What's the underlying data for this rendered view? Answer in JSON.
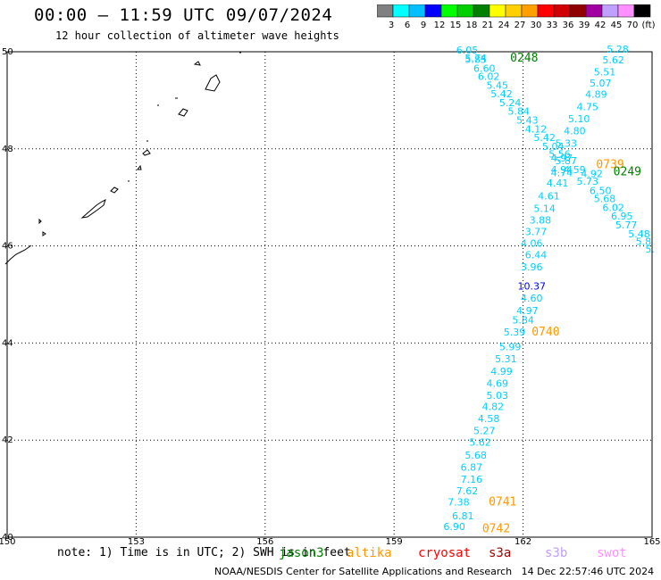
{
  "title": "00:00 — 11:59 UTC 09/07/2024",
  "subtitle": "12 hour collection of altimeter wave heights",
  "colorbar": {
    "colors": [
      "#808080",
      "#00ffff",
      "#00c0ff",
      "#0000ff",
      "#00ff00",
      "#00d000",
      "#008000",
      "#ffff00",
      "#ffd000",
      "#ffa000",
      "#ff0000",
      "#d00000",
      "#900000",
      "#a000a0",
      "#c0a0ff",
      "#ff90ff",
      "#000000"
    ],
    "labels": [
      "3",
      "6",
      "9",
      "12",
      "15",
      "18",
      "21",
      "24",
      "27",
      "30",
      "33",
      "36",
      "39",
      "42",
      "45",
      "70",
      "(ft)"
    ]
  },
  "axes": {
    "x_labels": [
      "150",
      "153",
      "156",
      "159",
      "162",
      "165"
    ],
    "y_labels": [
      "50",
      "48",
      "46",
      "44",
      "42",
      "40"
    ]
  },
  "pass_labels": [
    {
      "text": "0248",
      "color": "#008000",
      "lon": 161.7,
      "lat": 49.8
    },
    {
      "text": "0739",
      "color": "#ff9900",
      "lon": 163.7,
      "lat": 47.6
    },
    {
      "text": "0249",
      "color": "#008000",
      "lon": 164.1,
      "lat": 47.45
    },
    {
      "text": "0740",
      "color": "#ff9900",
      "lon": 162.2,
      "lat": 44.15
    },
    {
      "text": "0741",
      "color": "#ff9900",
      "lon": 161.2,
      "lat": 40.65
    },
    {
      "text": "0742",
      "color": "#ff9900",
      "lon": 161.05,
      "lat": 40.1
    }
  ],
  "observations": [
    {
      "v": "6.05",
      "lon": 160.7,
      "lat": 49.96,
      "c": "#00d0ff"
    },
    {
      "v": "5.74",
      "lon": 160.9,
      "lat": 49.8,
      "c": "#00d0ff"
    },
    {
      "v": "5.85",
      "lon": 160.9,
      "lat": 49.77,
      "c": "#00d0ff"
    },
    {
      "v": "6.60",
      "lon": 161.1,
      "lat": 49.59,
      "c": "#00d0ff"
    },
    {
      "v": "6.02",
      "lon": 161.2,
      "lat": 49.42,
      "c": "#00d0ff"
    },
    {
      "v": "5.45",
      "lon": 161.4,
      "lat": 49.24,
      "c": "#00d0ff"
    },
    {
      "v": "5.42",
      "lon": 161.5,
      "lat": 49.06,
      "c": "#00d0ff"
    },
    {
      "v": "5.24",
      "lon": 161.7,
      "lat": 48.88,
      "c": "#00d0ff"
    },
    {
      "v": "5.84",
      "lon": 161.9,
      "lat": 48.7,
      "c": "#00d0ff"
    },
    {
      "v": "5.43",
      "lon": 162.1,
      "lat": 48.52,
      "c": "#00d0ff"
    },
    {
      "v": "4.12",
      "lon": 162.3,
      "lat": 48.34,
      "c": "#00d0ff"
    },
    {
      "v": "5.42",
      "lon": 162.5,
      "lat": 48.16,
      "c": "#00d0ff"
    },
    {
      "v": "5.04",
      "lon": 162.7,
      "lat": 47.98,
      "c": "#00d0ff"
    },
    {
      "v": "5.56",
      "lon": 162.85,
      "lat": 47.82,
      "c": "#00d0ff"
    },
    {
      "v": "5.87",
      "lon": 163.0,
      "lat": 47.68,
      "c": "#00d0ff"
    },
    {
      "v": "4.59",
      "lon": 163.2,
      "lat": 47.5,
      "c": "#00d0ff"
    },
    {
      "v": "4.92",
      "lon": 163.6,
      "lat": 47.42,
      "c": "#00d0ff"
    },
    {
      "v": "5.73",
      "lon": 163.5,
      "lat": 47.26,
      "c": "#00d0ff"
    },
    {
      "v": "6.50",
      "lon": 163.8,
      "lat": 47.07,
      "c": "#00d0ff"
    },
    {
      "v": "5.68",
      "lon": 163.9,
      "lat": 46.9,
      "c": "#00d0ff"
    },
    {
      "v": "6.02",
      "lon": 164.1,
      "lat": 46.72,
      "c": "#00d0ff"
    },
    {
      "v": "6.95",
      "lon": 164.3,
      "lat": 46.54,
      "c": "#00d0ff"
    },
    {
      "v": "5.77",
      "lon": 164.4,
      "lat": 46.36,
      "c": "#00d0ff"
    },
    {
      "v": "5.48",
      "lon": 164.7,
      "lat": 46.18,
      "c": "#00d0ff"
    },
    {
      "v": "5.8",
      "lon": 164.8,
      "lat": 46.02,
      "c": "#00d0ff"
    },
    {
      "v": "5.",
      "lon": 164.95,
      "lat": 45.86,
      "c": "#00d0ff"
    },
    {
      "v": "5.28",
      "lon": 164.2,
      "lat": 49.98,
      "c": "#00d0ff"
    },
    {
      "v": "5.62",
      "lon": 164.1,
      "lat": 49.76,
      "c": "#00d0ff"
    },
    {
      "v": "5.51",
      "lon": 163.9,
      "lat": 49.51,
      "c": "#00d0ff"
    },
    {
      "v": "5.07",
      "lon": 163.8,
      "lat": 49.28,
      "c": "#00d0ff"
    },
    {
      "v": "4.89",
      "lon": 163.7,
      "lat": 49.05,
      "c": "#00d0ff"
    },
    {
      "v": "4.75",
      "lon": 163.5,
      "lat": 48.8,
      "c": "#00d0ff"
    },
    {
      "v": "5.10",
      "lon": 163.3,
      "lat": 48.55,
      "c": "#00d0ff"
    },
    {
      "v": "4.80",
      "lon": 163.2,
      "lat": 48.3,
      "c": "#00d0ff"
    },
    {
      "v": "5.33",
      "lon": 163.0,
      "lat": 48.04,
      "c": "#00d0ff"
    },
    {
      "v": "4.97",
      "lon": 162.9,
      "lat": 47.74,
      "c": "#00d0ff"
    },
    {
      "v": "4.94",
      "lon": 162.9,
      "lat": 47.5,
      "c": "#00d0ff"
    },
    {
      "v": "4.74",
      "lon": 162.9,
      "lat": 47.44,
      "c": "#00d0ff"
    },
    {
      "v": "4.41",
      "lon": 162.8,
      "lat": 47.22,
      "c": "#00d0ff"
    },
    {
      "v": "4.61",
      "lon": 162.6,
      "lat": 46.96,
      "c": "#00d0ff"
    },
    {
      "v": "5.14",
      "lon": 162.5,
      "lat": 46.7,
      "c": "#00d0ff"
    },
    {
      "v": "3.88",
      "lon": 162.4,
      "lat": 46.46,
      "c": "#00d0ff"
    },
    {
      "v": "3.77",
      "lon": 162.3,
      "lat": 46.22,
      "c": "#00d0ff"
    },
    {
      "v": "4.06",
      "lon": 162.2,
      "lat": 45.98,
      "c": "#00d0ff"
    },
    {
      "v": "6.44",
      "lon": 162.3,
      "lat": 45.74,
      "c": "#00d0ff"
    },
    {
      "v": "3.96",
      "lon": 162.2,
      "lat": 45.5,
      "c": "#00d0ff"
    },
    {
      "v": "10.37",
      "lon": 162.2,
      "lat": 45.1,
      "c": "#0000ff"
    },
    {
      "v": "4.60",
      "lon": 162.2,
      "lat": 44.85,
      "c": "#00d0ff"
    },
    {
      "v": "4.97",
      "lon": 162.1,
      "lat": 44.6,
      "c": "#00d0ff"
    },
    {
      "v": "5.84",
      "lon": 162.0,
      "lat": 44.4,
      "c": "#00d0ff"
    },
    {
      "v": "5.39",
      "lon": 161.8,
      "lat": 44.15,
      "c": "#00d0ff"
    },
    {
      "v": "5.99",
      "lon": 161.7,
      "lat": 43.85,
      "c": "#00d0ff"
    },
    {
      "v": "5.31",
      "lon": 161.6,
      "lat": 43.6,
      "c": "#00d0ff"
    },
    {
      "v": "4.99",
      "lon": 161.5,
      "lat": 43.35,
      "c": "#00d0ff"
    },
    {
      "v": "4.69",
      "lon": 161.4,
      "lat": 43.1,
      "c": "#00d0ff"
    },
    {
      "v": "5.03",
      "lon": 161.4,
      "lat": 42.85,
      "c": "#00d0ff"
    },
    {
      "v": "4.82",
      "lon": 161.3,
      "lat": 42.62,
      "c": "#00d0ff"
    },
    {
      "v": "4.58",
      "lon": 161.2,
      "lat": 42.37,
      "c": "#00d0ff"
    },
    {
      "v": "5.27",
      "lon": 161.1,
      "lat": 42.12,
      "c": "#00d0ff"
    },
    {
      "v": "5.62",
      "lon": 161.0,
      "lat": 41.88,
      "c": "#00d0ff"
    },
    {
      "v": "5.68",
      "lon": 160.9,
      "lat": 41.62,
      "c": "#00d0ff"
    },
    {
      "v": "6.87",
      "lon": 160.8,
      "lat": 41.37,
      "c": "#00d0ff"
    },
    {
      "v": "7.16",
      "lon": 160.8,
      "lat": 41.12,
      "c": "#00d0ff"
    },
    {
      "v": "7.62",
      "lon": 160.7,
      "lat": 40.88,
      "c": "#00d0ff"
    },
    {
      "v": "7.38",
      "lon": 160.5,
      "lat": 40.65,
      "c": "#00d0ff"
    },
    {
      "v": "6.81",
      "lon": 160.6,
      "lat": 40.37,
      "c": "#00d0ff"
    },
    {
      "v": "6.90",
      "lon": 160.4,
      "lat": 40.15,
      "c": "#00d0ff"
    }
  ],
  "note": "note: 1) Time is in UTC; 2) SWH is in feet",
  "satellites": [
    {
      "name": "jason3",
      "color": "#008000"
    },
    {
      "name": "altika",
      "color": "#ff9900"
    },
    {
      "name": "cryosat",
      "color": "#ff0000"
    },
    {
      "name": "s3a",
      "color": "#a00000"
    },
    {
      "name": "s3b",
      "color": "#c0a0ff"
    },
    {
      "name": "swot",
      "color": "#ff90ff"
    }
  ],
  "footer": "NOAA/NESDIS Center for Satellite Applications and Research   14 Dec 22:57:46 UTC 2024"
}
